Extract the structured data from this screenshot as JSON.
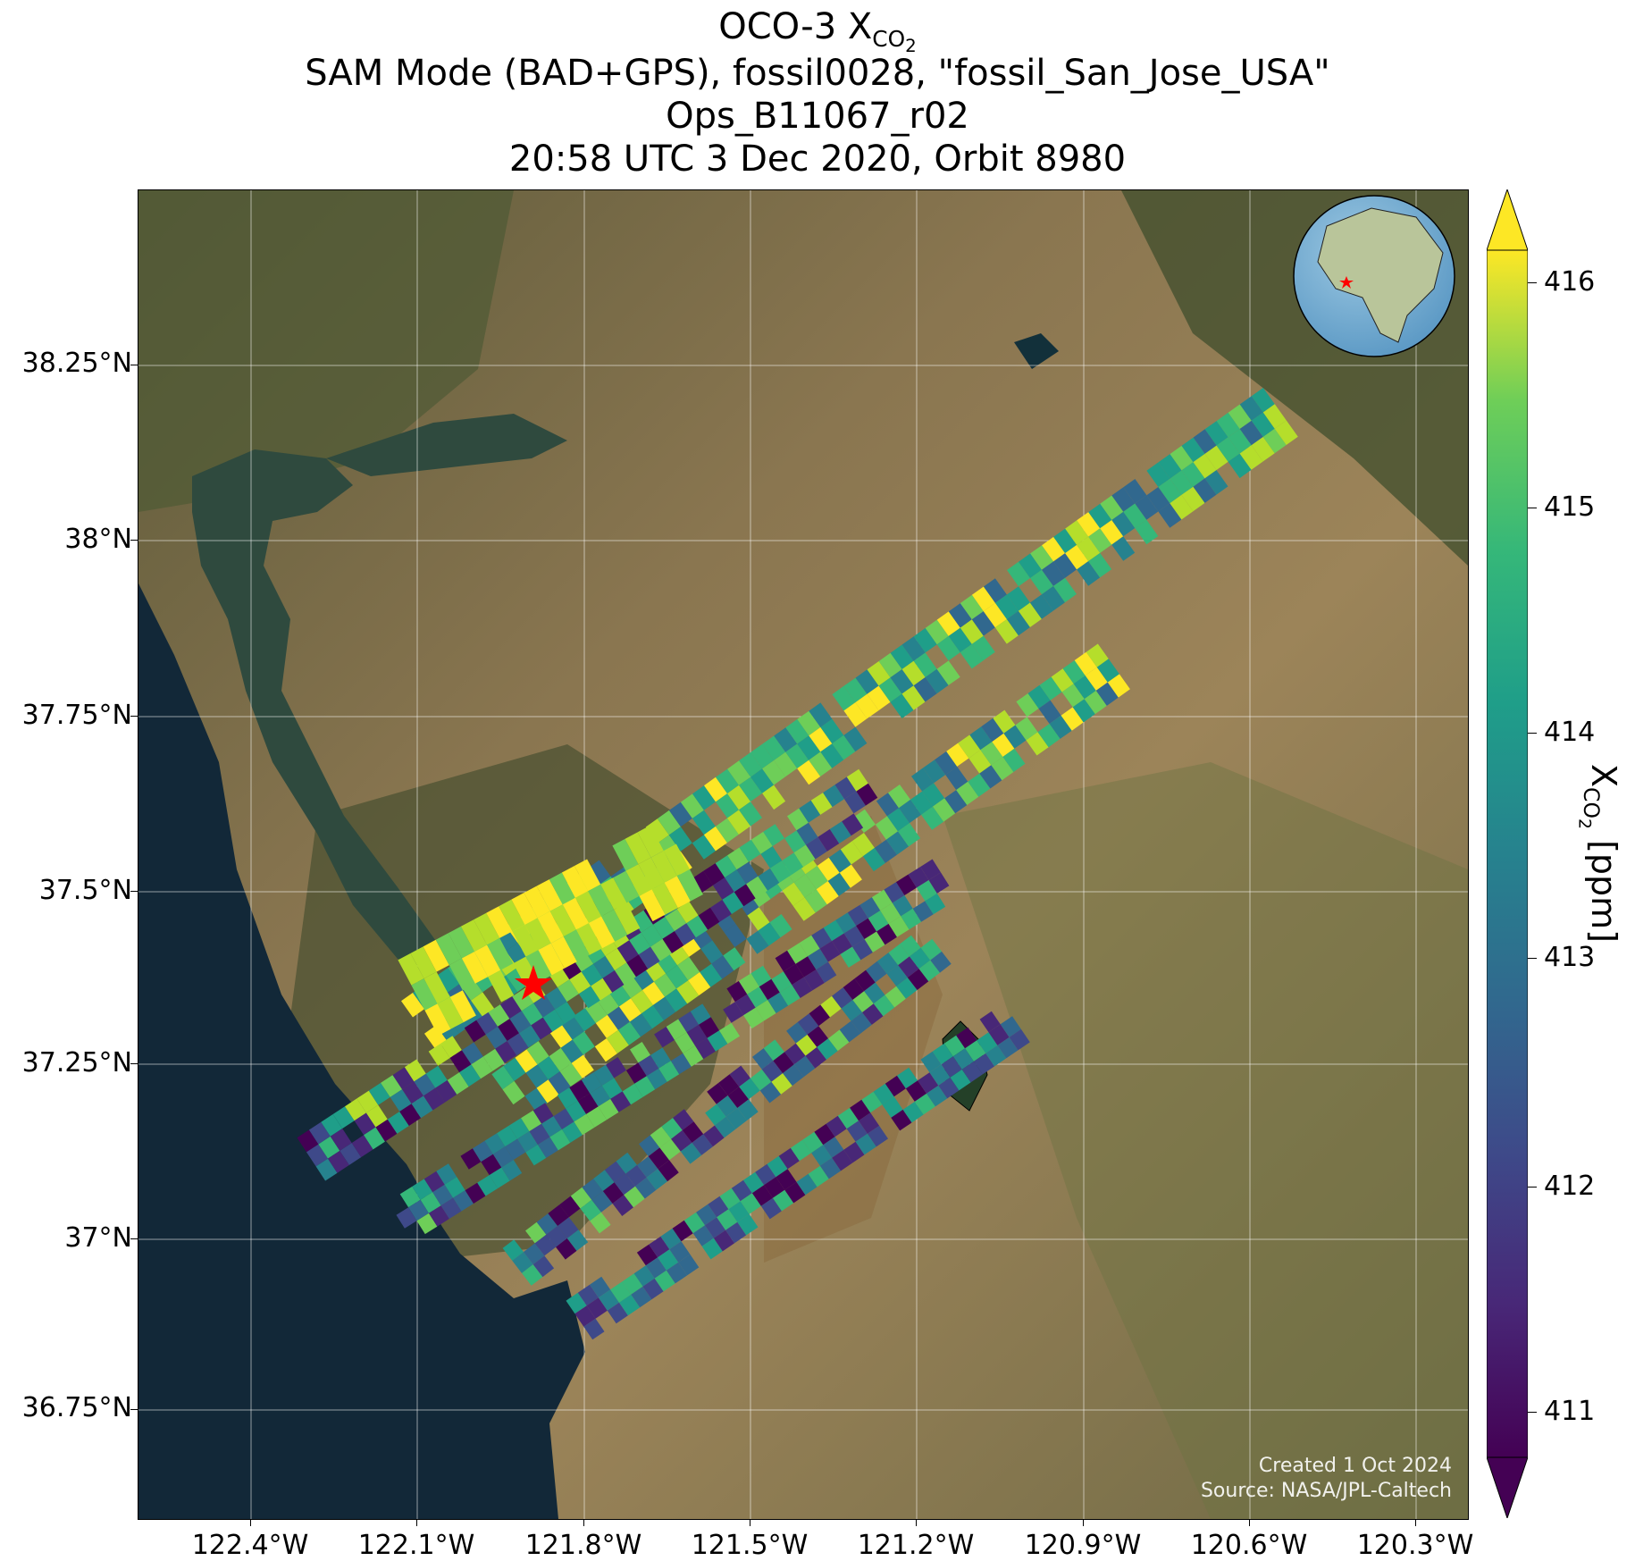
{
  "title": {
    "line1_main": "OCO-3 X",
    "line1_sub": "CO",
    "line1_subsub": "2",
    "line2": "SAM Mode (BAD+GPS), fossil0028, \"fossil_San_Jose_USA\"",
    "line3": "Ops_B11067_r02",
    "line4": "20:58 UTC 3 Dec 2020, Orbit 8980"
  },
  "map": {
    "lat_labels": [
      "38.25°N",
      "38°N",
      "37.75°N",
      "37.5°N",
      "37.25°N",
      "37°N",
      "36.75°N"
    ],
    "lon_labels": [
      "122.4°W",
      "122.1°W",
      "121.8°W",
      "121.5°W",
      "121.2°W",
      "120.9°W",
      "120.6°W",
      "120.3°W"
    ],
    "target_marker": "red-star",
    "target_name": "fossil_San_Jose_USA",
    "inset": "globe-north-america-with-red-star"
  },
  "credit": {
    "created": "Created 1 Oct 2024",
    "source": "Source: NASA/JPL-Caltech"
  },
  "colorbar": {
    "colormap": "viridis",
    "ticks": [
      "416",
      "415",
      "414",
      "413",
      "412",
      "411"
    ],
    "range": [
      410.75,
      416.25
    ],
    "extend": "both",
    "label_main": "X",
    "label_sub": "CO",
    "label_subsub": "2",
    "label_unit": " [ppm]"
  },
  "colors": {
    "viridis_low": "#440154",
    "viridis_mid": "#21918c",
    "viridis_high": "#fde725",
    "star": "#ff0000"
  }
}
